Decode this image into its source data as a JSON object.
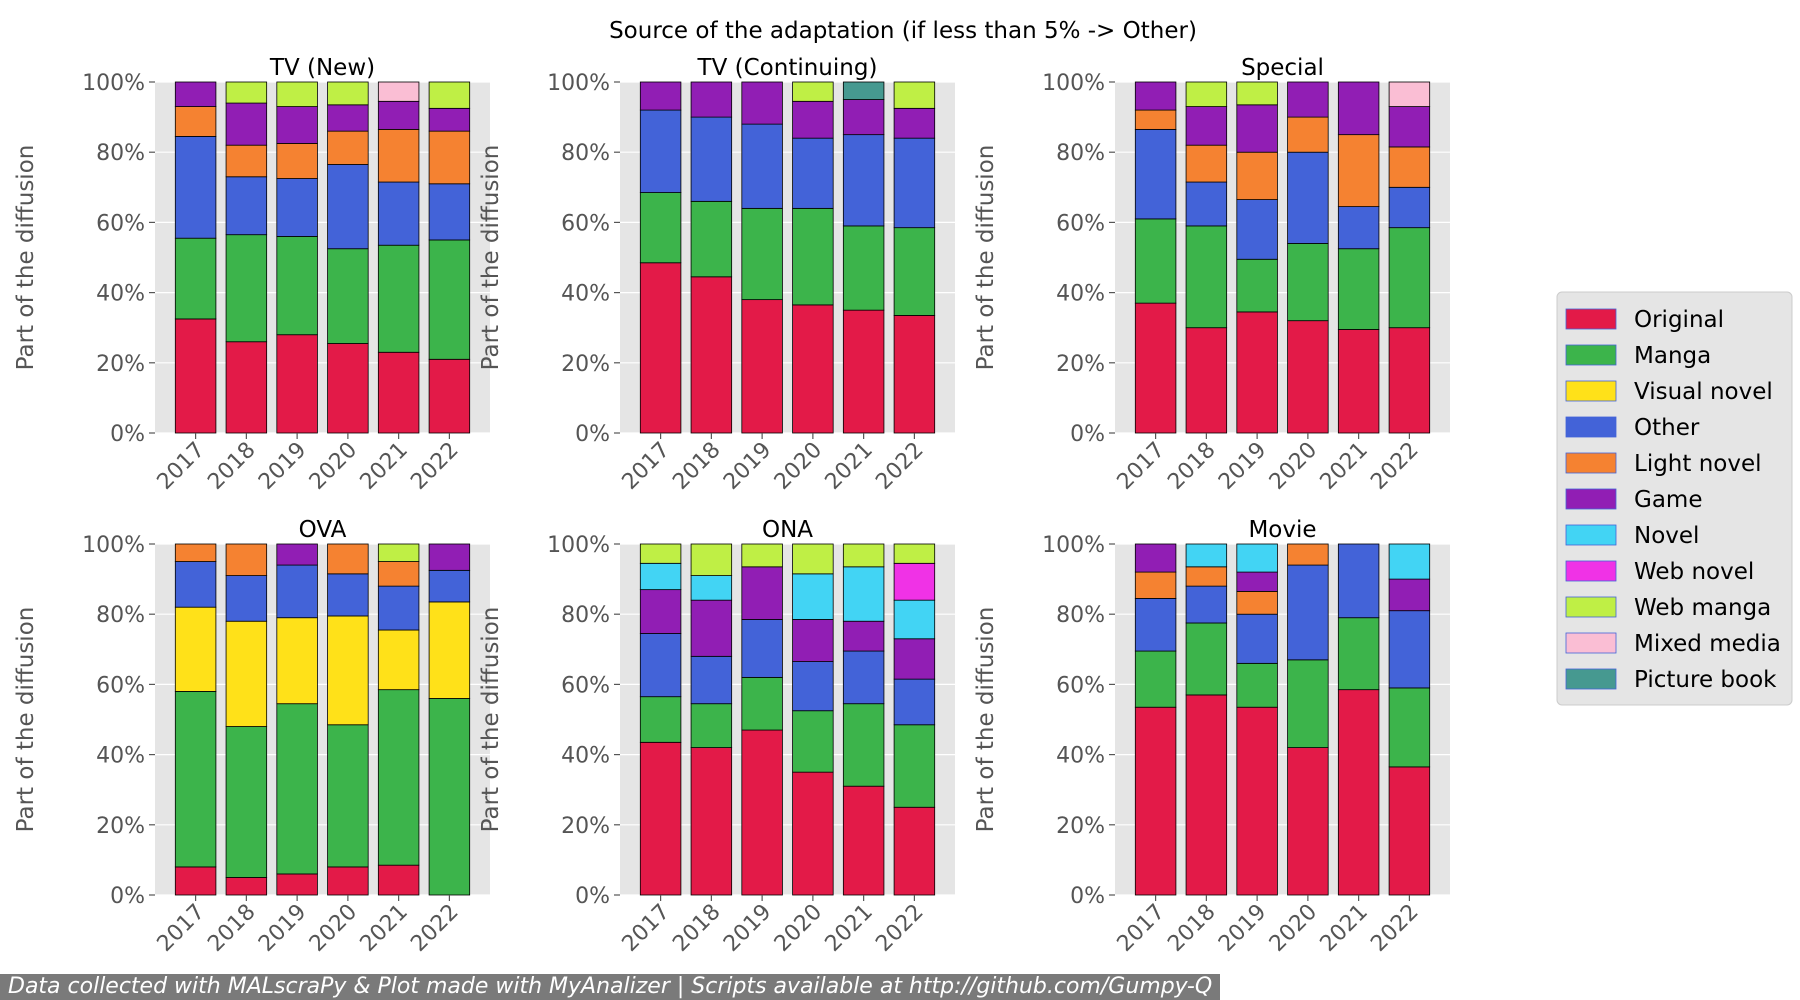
{
  "suptitle": "Source of the adaptation (if less than 5% -> Other)",
  "footer": "Data collected with MALscraPy & Plot made with MyAnalizer | Scripts available at http://github.com/Gumpy-Q",
  "categories_order": [
    "Original",
    "Manga",
    "Visual novel",
    "Other",
    "Light novel",
    "Game",
    "Novel",
    "Web novel",
    "Web manga",
    "Mixed media",
    "Picture book"
  ],
  "legend": [
    {
      "label": "Original",
      "color": "#e31a48"
    },
    {
      "label": "Manga",
      "color": "#3cb44b"
    },
    {
      "label": "Visual novel",
      "color": "#ffe119"
    },
    {
      "label": "Other",
      "color": "#4363d8"
    },
    {
      "label": "Light novel",
      "color": "#f58231"
    },
    {
      "label": "Game",
      "color": "#911eb4"
    },
    {
      "label": "Novel",
      "color": "#42d4f4"
    },
    {
      "label": "Web novel",
      "color": "#f032e6"
    },
    {
      "label": "Web manga",
      "color": "#bfef45"
    },
    {
      "label": "Mixed media",
      "color": "#fabed4"
    },
    {
      "label": "Picture book",
      "color": "#469990"
    }
  ],
  "chart_data": [
    {
      "type": "bar",
      "stacked": true,
      "title": "TV (New)",
      "ylabel": "Part of the diffusion",
      "ylim": [
        0,
        100
      ],
      "yticks": [
        "0%",
        "20%",
        "40%",
        "60%",
        "80%",
        "100%"
      ],
      "categories": [
        "2017",
        "2018",
        "2019",
        "2020",
        "2021",
        "2022"
      ],
      "series": [
        {
          "name": "Original",
          "values": [
            32.5,
            26,
            28,
            25.5,
            23,
            21
          ]
        },
        {
          "name": "Manga",
          "values": [
            23,
            30.5,
            28,
            27,
            30.5,
            34
          ]
        },
        {
          "name": "Other",
          "values": [
            29,
            16.5,
            16.5,
            24,
            18,
            16
          ]
        },
        {
          "name": "Light novel",
          "values": [
            8.5,
            9,
            10,
            9.5,
            15,
            15
          ]
        },
        {
          "name": "Game",
          "values": [
            7,
            12,
            10.5,
            7.5,
            8,
            6.5
          ]
        },
        {
          "name": "Web manga",
          "values": [
            0,
            6,
            7,
            6.5,
            0,
            7.5
          ]
        },
        {
          "name": "Mixed media",
          "values": [
            0,
            0,
            0,
            0,
            5.5,
            0
          ]
        }
      ]
    },
    {
      "type": "bar",
      "stacked": true,
      "title": "TV (Continuing)",
      "ylabel": "Part of the diffusion",
      "ylim": [
        0,
        100
      ],
      "yticks": [
        "0%",
        "20%",
        "40%",
        "60%",
        "80%",
        "100%"
      ],
      "categories": [
        "2017",
        "2018",
        "2019",
        "2020",
        "2021",
        "2022"
      ],
      "series": [
        {
          "name": "Original",
          "values": [
            48.5,
            44.5,
            38,
            36.5,
            35,
            33.5
          ]
        },
        {
          "name": "Manga",
          "values": [
            20,
            21.5,
            26,
            27.5,
            24,
            25
          ]
        },
        {
          "name": "Other",
          "values": [
            23.5,
            24,
            24,
            20,
            26,
            25.5
          ]
        },
        {
          "name": "Game",
          "values": [
            8,
            10,
            12,
            10.5,
            10,
            8.5
          ]
        },
        {
          "name": "Web manga",
          "values": [
            0,
            0,
            0,
            5.5,
            0,
            7.5
          ]
        },
        {
          "name": "Picture book",
          "values": [
            0,
            0,
            0,
            0,
            5,
            0
          ]
        }
      ]
    },
    {
      "type": "bar",
      "stacked": true,
      "title": "Special",
      "ylabel": "Part of the diffusion",
      "ylim": [
        0,
        100
      ],
      "yticks": [
        "0%",
        "20%",
        "40%",
        "60%",
        "80%",
        "100%"
      ],
      "categories": [
        "2017",
        "2018",
        "2019",
        "2020",
        "2021",
        "2022"
      ],
      "series": [
        {
          "name": "Original",
          "values": [
            37,
            30,
            34.5,
            32,
            29.5,
            30
          ]
        },
        {
          "name": "Manga",
          "values": [
            24,
            29,
            15,
            22,
            23,
            28.5
          ]
        },
        {
          "name": "Other",
          "values": [
            25.5,
            12.5,
            17,
            26,
            12,
            11.5
          ]
        },
        {
          "name": "Light novel",
          "values": [
            5.5,
            10.5,
            13.5,
            10,
            20.5,
            11.5
          ]
        },
        {
          "name": "Game",
          "values": [
            8,
            11,
            13.5,
            10,
            15,
            11.5
          ]
        },
        {
          "name": "Web manga",
          "values": [
            0,
            7,
            6.5,
            0,
            0,
            0
          ]
        },
        {
          "name": "Mixed media",
          "values": [
            0,
            0,
            0,
            0,
            0,
            7
          ]
        }
      ]
    },
    {
      "type": "bar",
      "stacked": true,
      "title": "OVA",
      "ylabel": "Part of the diffusion",
      "ylim": [
        0,
        100
      ],
      "yticks": [
        "0%",
        "20%",
        "40%",
        "60%",
        "80%",
        "100%"
      ],
      "categories": [
        "2017",
        "2018",
        "2019",
        "2020",
        "2021",
        "2022"
      ],
      "series": [
        {
          "name": "Original",
          "values": [
            8,
            5,
            6,
            8,
            8.5,
            0
          ]
        },
        {
          "name": "Manga",
          "values": [
            50,
            43,
            48.5,
            40.5,
            50,
            56
          ]
        },
        {
          "name": "Visual novel",
          "values": [
            24,
            30,
            24.5,
            31,
            17,
            27.5
          ]
        },
        {
          "name": "Other",
          "values": [
            13,
            13,
            15,
            12,
            12.5,
            9
          ]
        },
        {
          "name": "Light novel",
          "values": [
            5,
            9,
            0,
            8.5,
            7,
            0
          ]
        },
        {
          "name": "Game",
          "values": [
            0,
            0,
            6,
            0,
            0,
            7.5
          ]
        },
        {
          "name": "Web manga",
          "values": [
            0,
            0,
            0,
            0,
            5,
            0
          ]
        }
      ]
    },
    {
      "type": "bar",
      "stacked": true,
      "title": "ONA",
      "ylabel": "Part of the diffusion",
      "ylim": [
        0,
        100
      ],
      "yticks": [
        "0%",
        "20%",
        "40%",
        "60%",
        "80%",
        "100%"
      ],
      "categories": [
        "2017",
        "2018",
        "2019",
        "2020",
        "2021",
        "2022"
      ],
      "series": [
        {
          "name": "Original",
          "values": [
            43.5,
            42,
            47,
            35,
            31,
            25
          ]
        },
        {
          "name": "Manga",
          "values": [
            13,
            12.5,
            15,
            17.5,
            23.5,
            23.5
          ]
        },
        {
          "name": "Other",
          "values": [
            18,
            13.5,
            16.5,
            14,
            15,
            13
          ]
        },
        {
          "name": "Game",
          "values": [
            12.5,
            16,
            15,
            12,
            8.5,
            11.5
          ]
        },
        {
          "name": "Novel",
          "values": [
            7.5,
            7,
            0,
            13,
            15.5,
            11
          ]
        },
        {
          "name": "Web novel",
          "values": [
            0,
            0,
            0,
            0,
            0,
            10.5
          ]
        },
        {
          "name": "Web manga",
          "values": [
            5.5,
            9,
            6.5,
            8.5,
            6.5,
            5.5
          ]
        }
      ]
    },
    {
      "type": "bar",
      "stacked": true,
      "title": "Movie",
      "ylabel": "Part of the diffusion",
      "ylim": [
        0,
        100
      ],
      "yticks": [
        "0%",
        "20%",
        "40%",
        "60%",
        "80%",
        "100%"
      ],
      "categories": [
        "2017",
        "2018",
        "2019",
        "2020",
        "2021",
        "2022"
      ],
      "series": [
        {
          "name": "Original",
          "values": [
            53.5,
            57,
            53.5,
            42,
            58.5,
            36.5
          ]
        },
        {
          "name": "Manga",
          "values": [
            16,
            20.5,
            12.5,
            25,
            20.5,
            22.5
          ]
        },
        {
          "name": "Other",
          "values": [
            15,
            10.5,
            14,
            27,
            21,
            22
          ]
        },
        {
          "name": "Light novel",
          "values": [
            7.5,
            5.5,
            6.5,
            6,
            0,
            0
          ]
        },
        {
          "name": "Game",
          "values": [
            8,
            0,
            5.5,
            0,
            0,
            9
          ]
        },
        {
          "name": "Novel",
          "values": [
            0,
            6.5,
            8,
            0,
            0,
            10
          ]
        }
      ]
    }
  ]
}
